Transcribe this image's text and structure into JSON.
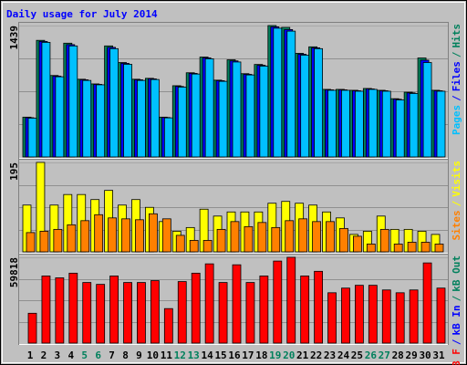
{
  "title": "Daily usage for July 2014",
  "legend_separator": "/",
  "categories": [
    1,
    2,
    3,
    4,
    5,
    6,
    7,
    8,
    9,
    10,
    11,
    12,
    13,
    14,
    15,
    16,
    17,
    18,
    19,
    20,
    21,
    22,
    23,
    24,
    25,
    26,
    27,
    28,
    29,
    30,
    31
  ],
  "weekend_categories": [
    5,
    6,
    12,
    13,
    19,
    20,
    26,
    27
  ],
  "weekend_color": "#00805c",
  "chart_data": [
    {
      "type": "bar",
      "ylim": [
        0,
        1439
      ],
      "yticks": [
        1439
      ],
      "series": [
        {
          "name": "Hits",
          "color": "#00805c",
          "values": [
            436,
            1277,
            892,
            1246,
            851,
            800,
            1216,
            1034,
            851,
            861,
            436,
            780,
            922,
            1094,
            841,
            1064,
            912,
            1013,
            1439,
            1419,
            1135,
            1206,
            740,
            740,
            730,
            750,
            730,
            638,
            709,
            1084,
            730
          ]
        },
        {
          "name": "Files",
          "color": "#0000ff",
          "values": [
            430,
            1265,
            885,
            1230,
            845,
            795,
            1200,
            1025,
            845,
            855,
            432,
            772,
            915,
            1085,
            835,
            1052,
            905,
            1004,
            1425,
            1395,
            1125,
            1195,
            735,
            735,
            725,
            745,
            725,
            632,
            702,
            1060,
            725
          ]
        },
        {
          "name": "Pages",
          "color": "#00c0ff",
          "values": [
            425,
            1255,
            878,
            1216,
            838,
            790,
            1186,
            1015,
            838,
            848,
            428,
            765,
            908,
            1075,
            828,
            1040,
            898,
            995,
            1410,
            1378,
            1115,
            1186,
            730,
            730,
            720,
            740,
            720,
            625,
            695,
            1034,
            720
          ]
        }
      ]
    },
    {
      "type": "bar",
      "ylim": [
        0,
        195
      ],
      "yticks": [
        195
      ],
      "series": [
        {
          "name": "Visits",
          "color": "#ffff00",
          "values": [
            102,
            195,
            102,
            125,
            125,
            114,
            134,
            102,
            114,
            97,
            66,
            45,
            53,
            93,
            78,
            87,
            87,
            87,
            106,
            110,
            106,
            102,
            87,
            74,
            38,
            45,
            78,
            49,
            49,
            45,
            38
          ]
        },
        {
          "name": "Sites",
          "color": "#ff8000",
          "values": [
            42,
            45,
            49,
            59,
            68,
            81,
            74,
            72,
            70,
            83,
            72,
            36,
            25,
            25,
            49,
            66,
            55,
            64,
            53,
            68,
            72,
            66,
            66,
            51,
            34,
            17,
            49,
            17,
            21,
            21,
            17
          ]
        }
      ]
    },
    {
      "type": "bar",
      "ylim": [
        0,
        59818
      ],
      "yticks": [
        59818
      ],
      "series": [
        {
          "name": "kB Out",
          "color": "#00805c",
          "values": [
            0,
            0,
            0,
            0,
            0,
            0,
            0,
            0,
            0,
            0,
            0,
            0,
            0,
            0,
            0,
            0,
            0,
            0,
            0,
            0,
            0,
            0,
            0,
            0,
            0,
            0,
            0,
            0,
            0,
            0,
            0
          ]
        },
        {
          "name": "kB In",
          "color": "#0000ff",
          "values": [
            0,
            0,
            0,
            0,
            0,
            0,
            0,
            0,
            0,
            0,
            0,
            0,
            0,
            0,
            0,
            0,
            0,
            0,
            0,
            0,
            0,
            0,
            0,
            0,
            0,
            0,
            0,
            0,
            0,
            0,
            0
          ]
        },
        {
          "name": "kB F",
          "color": "#ff0000",
          "values": [
            20806,
            46814,
            45514,
            48765,
            42263,
            40962,
            46814,
            42263,
            42263,
            43563,
            24057,
            42913,
            48765,
            55266,
            42263,
            54616,
            42263,
            46814,
            57217,
            59818,
            46814,
            50065,
            35110,
            38361,
            40312,
            40312,
            37061,
            35110,
            37061,
            55917,
            38361
          ]
        }
      ]
    }
  ]
}
